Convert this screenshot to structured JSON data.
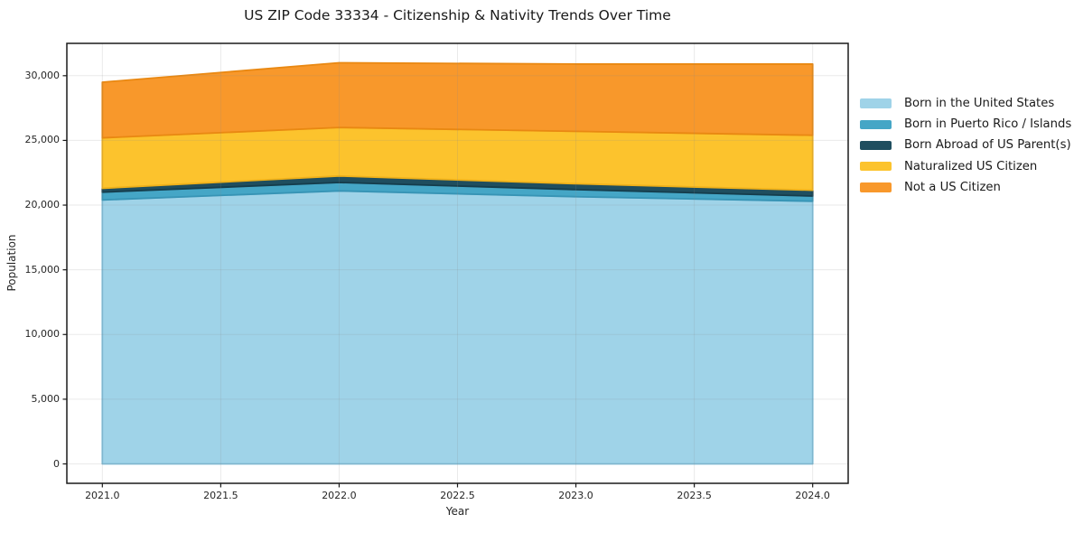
{
  "title": "US ZIP Code 33334 - Citizenship & Nativity Trends Over Time",
  "chart_data": {
    "type": "area",
    "stacked": true,
    "title": "US ZIP Code 33334 - Citizenship & Nativity Trends Over Time",
    "xlabel": "Year",
    "ylabel": "Population",
    "x": [
      2021,
      2022,
      2023,
      2024
    ],
    "x_tick_values": [
      2021.0,
      2021.5,
      2022.0,
      2022.5,
      2023.0,
      2023.5,
      2024.0
    ],
    "x_ticks": [
      "2021.0",
      "2021.5",
      "2022.0",
      "2022.5",
      "2023.0",
      "2023.5",
      "2024.0"
    ],
    "y_tick_values": [
      0,
      5000,
      10000,
      15000,
      20000,
      25000,
      30000
    ],
    "y_ticks": [
      "0",
      "5,000",
      "10,000",
      "15,000",
      "20,000",
      "25,000",
      "30,000"
    ],
    "xlim": [
      2020.85,
      2024.15
    ],
    "ylim": [
      -1500,
      32500
    ],
    "grid": true,
    "legend_position": "outside-right",
    "series": [
      {
        "name": "Born in the United States",
        "color": "#9FD3E8",
        "edge": "#7EBEDA",
        "values": [
          20400,
          21100,
          20650,
          20300
        ]
      },
      {
        "name": "Born in Puerto Rico / Islands",
        "color": "#45A6C6",
        "edge": "#3794B5",
        "values": [
          600,
          650,
          550,
          400
        ]
      },
      {
        "name": "Born Abroad of US Parent(s)",
        "color": "#1F4E5F",
        "edge": "#153D4C",
        "values": [
          300,
          500,
          450,
          450
        ]
      },
      {
        "name": "Naturalized US Citizen",
        "color": "#FCC32D",
        "edge": "#EFB11A",
        "values": [
          3900,
          3750,
          4050,
          4250
        ]
      },
      {
        "name": "Not a US Citizen",
        "color": "#F8982B",
        "edge": "#E98812",
        "values": [
          4300,
          5000,
          5200,
          5500
        ]
      }
    ],
    "colors": {
      "spine": "#1a1a1a",
      "grid": "#888888",
      "tick_text": "#262626"
    }
  }
}
